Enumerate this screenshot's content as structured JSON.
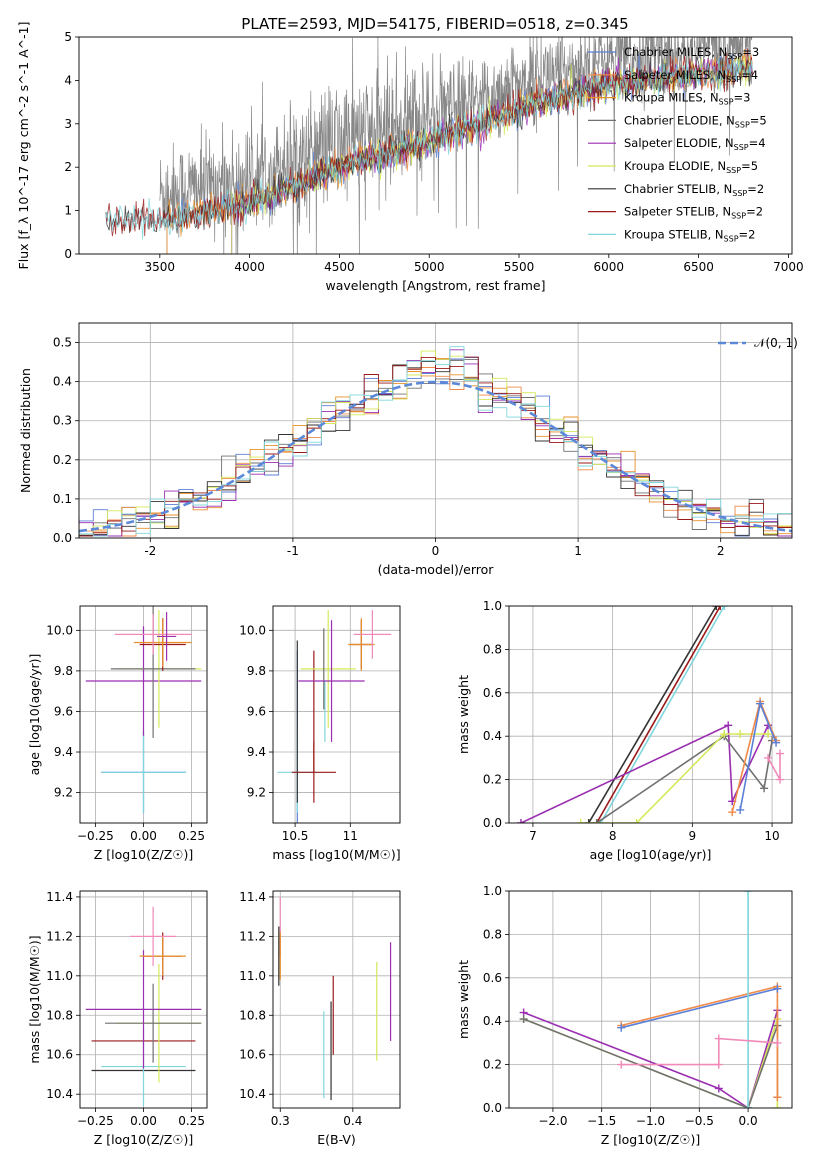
{
  "figure": {
    "title": "PLATE=2593, MJD=54175, FIBERID=0518, z=0.345"
  },
  "colors": {
    "Chabrier MILES": "#5b7fd6",
    "Salpeter MILES": "#f08a48",
    "Kroupa MILES": "#e8902a",
    "Chabrier ELODIE": "#707070",
    "Salpeter ELODIE": "#9a2fb0",
    "Kroupa ELODIE": "#d6e85a",
    "Chabrier STELIB": "#333333",
    "Salpeter STELIB": "#9a1a1a",
    "Kroupa STELIB": "#7fd6dc",
    "extra_pink": "#f08ab8",
    "normal": "#5b88d8",
    "grid": "#b0b0b0"
  },
  "chart_data": [
    {
      "id": "spectrum",
      "type": "line",
      "xlabel": "wavelength [Angstrom, rest frame]",
      "ylabel": "Flux [f_λ 10^-17 erg cm^-2 s^-1 A^-1]",
      "xlim": [
        3050,
        7020
      ],
      "ylim": [
        0,
        5
      ],
      "xticks": [
        3500,
        4000,
        4500,
        5000,
        5500,
        6000,
        6500,
        7000
      ],
      "yticks": [
        0,
        1,
        2,
        3,
        4,
        5
      ],
      "grid": false,
      "legend_position": "top-right",
      "legend": [
        {
          "name": "Chabrier MILES",
          "base": "Chabrier MILES, N",
          "sub": "SSP",
          "tail": "=3"
        },
        {
          "name": "Salpeter MILES",
          "base": "Salpeter MILES, N",
          "sub": "SSP",
          "tail": "=4"
        },
        {
          "name": "Kroupa MILES",
          "base": "Kroupa MILES, N",
          "sub": "SSP",
          "tail": "=3"
        },
        {
          "name": "Chabrier ELODIE",
          "base": "Chabrier ELODIE, N",
          "sub": "SSP",
          "tail": "=5"
        },
        {
          "name": "Salpeter ELODIE",
          "base": "Salpeter ELODIE, N",
          "sub": "SSP",
          "tail": "=4"
        },
        {
          "name": "Kroupa ELODIE",
          "base": "Kroupa ELODIE, N",
          "sub": "SSP",
          "tail": "=5"
        },
        {
          "name": "Chabrier STELIB",
          "base": "Chabrier STELIB, N",
          "sub": "SSP",
          "tail": "=2"
        },
        {
          "name": "Salpeter STELIB",
          "base": "Salpeter STELIB, N",
          "sub": "SSP",
          "tail": "=2"
        },
        {
          "name": "Kroupa STELIB",
          "base": "Kroupa STELIB, N",
          "sub": "SSP",
          "tail": "=2"
        }
      ],
      "data": {
        "wavelength_range": [
          3200,
          6800
        ],
        "continuum_knots": [
          [
            3200,
            0.75
          ],
          [
            3500,
            0.8
          ],
          [
            3800,
            1.0
          ],
          [
            4000,
            1.15
          ],
          [
            4200,
            1.5
          ],
          [
            4500,
            2.0
          ],
          [
            4800,
            2.35
          ],
          [
            5000,
            2.6
          ],
          [
            5300,
            3.0
          ],
          [
            5600,
            3.5
          ],
          [
            6000,
            3.9
          ],
          [
            6400,
            4.1
          ],
          [
            6800,
            4.3
          ]
        ],
        "noisy_data_start": 3500,
        "model_starts": {
          "MILES": 3540,
          "ELODIE": 3900,
          "STELIB": 3200
        }
      }
    },
    {
      "id": "residuals",
      "type": "histogram",
      "xlabel": "(data-model)/error",
      "ylabel": "Normed distribution",
      "xlim": [
        -2.5,
        2.5
      ],
      "ylim": [
        0,
        0.55
      ],
      "xticks": [
        -2,
        -1,
        0,
        1,
        2
      ],
      "yticks": [
        0.0,
        0.1,
        0.2,
        0.3,
        0.4,
        0.5
      ],
      "grid": true,
      "legend_position": "top-right",
      "legend": [
        {
          "name": "N(0,1)",
          "label": "𝒩(0, 1)"
        }
      ],
      "data": {
        "bin_width": 0.1,
        "normal": {
          "mean": 0,
          "sigma": 1
        }
      }
    },
    {
      "id": "age_vs_Z",
      "type": "scatter",
      "xlabel": "Z [log10(Z/Z☉)]",
      "ylabel": "age [log10(age/yr)]",
      "xlim": [
        -0.33,
        0.33
      ],
      "ylim": [
        9.05,
        10.12
      ],
      "xticks": [
        -0.25,
        0.0,
        0.25
      ],
      "xticklabels": [
        "−0.25",
        "0.00",
        "0.25"
      ],
      "yticks": [
        9.2,
        9.4,
        9.6,
        9.8,
        10.0
      ],
      "grid": true,
      "points": [
        {
          "model": "Chabrier MILES",
          "x": 0.0,
          "xerr": 0.22,
          "y": 9.3,
          "yerr": 0.2
        },
        {
          "model": "Kroupa STELIB",
          "x": 0.0,
          "xerr": 0.22,
          "y": 9.3,
          "yerr": 0.2
        },
        {
          "model": "Salpeter ELODIE",
          "x": 0.0,
          "xerr": 0.3,
          "y": 9.75,
          "yerr": 0.27
        },
        {
          "model": "Kroupa ELODIE",
          "x": 0.08,
          "xerr": 0.22,
          "y": 9.81,
          "yerr": 0.29
        },
        {
          "model": "Chabrier ELODIE",
          "x": 0.05,
          "xerr": 0.22,
          "y": 9.81,
          "yerr": 0.34
        },
        {
          "model": "Salpeter STELIB",
          "x": 0.1,
          "xerr": 0.12,
          "y": 9.93,
          "yerr": 0.13
        },
        {
          "model": "Kroupa MILES",
          "x": 0.1,
          "xerr": 0.15,
          "y": 9.94,
          "yerr": 0.12
        },
        {
          "model": "extra_pink",
          "x": 0.05,
          "xerr": 0.2,
          "y": 9.98,
          "yerr": 0.1
        },
        {
          "model": "Salpeter ELODIE",
          "x": 0.12,
          "xerr": 0.05,
          "y": 9.97,
          "yerr": 0.12
        }
      ]
    },
    {
      "id": "age_vs_mass",
      "type": "scatter",
      "xlabel": "mass [log10(M/M☉)]",
      "ylabel": "",
      "xlim": [
        10.3,
        11.45
      ],
      "ylim": [
        9.05,
        10.12
      ],
      "xticks": [
        10.5,
        11.0
      ],
      "yticks": [
        9.2,
        9.4,
        9.6,
        9.8,
        10.0
      ],
      "grid": true,
      "points": [
        {
          "model": "Chabrier MILES",
          "x": 10.52,
          "xerr": 0.0,
          "y": 9.4,
          "yerr": 0.5
        },
        {
          "model": "Kroupa STELIB",
          "x": 10.52,
          "xerr": 0.18,
          "y": 9.3,
          "yerr": 0.2
        },
        {
          "model": "Chabrier STELIB",
          "x": 10.52,
          "xerr": 0.0,
          "y": 9.55,
          "yerr": 0.4
        },
        {
          "model": "Salpeter STELIB",
          "x": 10.67,
          "xerr": 0.2,
          "y": 9.3,
          "yerr": 0.15
        },
        {
          "model": "Salpeter STELIB",
          "x": 10.67,
          "xerr": 0.0,
          "y": 9.6,
          "yerr": 0.3
        },
        {
          "model": "Kroupa STELIB",
          "x": 10.77,
          "xerr": 0.0,
          "y": 9.6,
          "yerr": 0.15
        },
        {
          "model": "Kroupa ELODIE",
          "x": 10.8,
          "xerr": 0.25,
          "y": 9.81,
          "yerr": 0.29
        },
        {
          "model": "Chabrier ELODIE",
          "x": 10.76,
          "xerr": 0.0,
          "y": 9.81,
          "yerr": 0.2
        },
        {
          "model": "Salpeter ELODIE",
          "x": 10.83,
          "xerr": 0.3,
          "y": 9.75,
          "yerr": 0.3
        },
        {
          "model": "Salpeter STELIB",
          "x": 11.1,
          "xerr": 0.1,
          "y": 9.93,
          "yerr": 0.12
        },
        {
          "model": "Kroupa MILES",
          "x": 11.1,
          "xerr": 0.12,
          "y": 9.93,
          "yerr": 0.13
        },
        {
          "model": "extra_pink",
          "x": 11.2,
          "xerr": 0.17,
          "y": 9.98,
          "yerr": 0.12
        }
      ]
    },
    {
      "id": "weight_vs_age",
      "type": "line",
      "xlabel": "age [log10(age/yr)]",
      "ylabel": "mass weight",
      "xlim": [
        6.7,
        10.25
      ],
      "ylim": [
        0,
        1
      ],
      "xticks": [
        7,
        8,
        9,
        10
      ],
      "yticks": [
        0.0,
        0.2,
        0.4,
        0.6,
        0.8,
        1.0
      ],
      "grid": true,
      "series": [
        {
          "model": "Chabrier STELIB",
          "x": [
            7.7,
            9.3
          ],
          "y": [
            0.0,
            1.0
          ]
        },
        {
          "model": "Salpeter STELIB",
          "x": [
            7.8,
            9.35
          ],
          "y": [
            0.0,
            1.0
          ]
        },
        {
          "model": "Kroupa STELIB",
          "x": [
            7.85,
            9.4
          ],
          "y": [
            0.0,
            1.0
          ]
        },
        {
          "model": "Salpeter ELODIE",
          "x": [
            6.85,
            9.45,
            9.5,
            9.95
          ],
          "y": [
            0.0,
            0.45,
            0.1,
            0.45
          ]
        },
        {
          "model": "Chabrier ELODIE",
          "x": [
            7.8,
            9.4,
            9.9,
            10.0
          ],
          "y": [
            0.0,
            0.4,
            0.16,
            0.38
          ]
        },
        {
          "model": "Kroupa ELODIE",
          "x": [
            7.6,
            8.3,
            9.4,
            9.6,
            9.95
          ],
          "y": [
            0.0,
            0.0,
            0.41,
            0.41,
            0.41
          ]
        },
        {
          "model": "Salpeter MILES",
          "x": [
            9.5,
            9.85,
            10.05
          ],
          "y": [
            0.05,
            0.56,
            0.38
          ]
        },
        {
          "model": "Chabrier MILES",
          "x": [
            9.6,
            9.85,
            10.05
          ],
          "y": [
            0.06,
            0.55,
            0.37
          ]
        },
        {
          "model": "extra_pink",
          "x": [
            9.95,
            10.1,
            10.1
          ],
          "y": [
            0.3,
            0.2,
            0.32
          ]
        }
      ]
    },
    {
      "id": "mass_vs_Z",
      "type": "scatter",
      "xlabel": "Z [log10(Z/Z☉)]",
      "ylabel": "mass [log10(M/M☉)]",
      "xlim": [
        -0.33,
        0.33
      ],
      "ylim": [
        10.33,
        11.43
      ],
      "xticks": [
        -0.25,
        0.0,
        0.25
      ],
      "xticklabels": [
        "−0.25",
        "0.00",
        "0.25"
      ],
      "yticks": [
        10.4,
        10.6,
        10.8,
        11.0,
        11.2,
        11.4
      ],
      "grid": true,
      "points": [
        {
          "model": "Chabrier STELIB",
          "x": 0.0,
          "xerr": 0.27,
          "y": 10.52,
          "yerr": 0.0
        },
        {
          "model": "Kroupa STELIB",
          "x": 0.0,
          "xerr": 0.22,
          "y": 10.54,
          "yerr": 0.2
        },
        {
          "model": "Salpeter STELIB",
          "x": 0.0,
          "xerr": 0.27,
          "y": 10.67,
          "yerr": 0.0
        },
        {
          "model": "Kroupa ELODIE",
          "x": 0.08,
          "xerr": 0.22,
          "y": 10.76,
          "yerr": 0.3
        },
        {
          "model": "Chabrier ELODIE",
          "x": 0.05,
          "xerr": 0.25,
          "y": 10.76,
          "yerr": 0.2
        },
        {
          "model": "Salpeter ELODIE",
          "x": 0.0,
          "xerr": 0.3,
          "y": 10.83,
          "yerr": 0.3
        },
        {
          "model": "Salpeter STELIB",
          "x": 0.1,
          "xerr": 0.1,
          "y": 11.1,
          "yerr": 0.12
        },
        {
          "model": "Kroupa MILES",
          "x": 0.1,
          "xerr": 0.12,
          "y": 11.1,
          "yerr": 0.1
        },
        {
          "model": "extra_pink",
          "x": 0.05,
          "xerr": 0.12,
          "y": 11.2,
          "yerr": 0.15
        }
      ]
    },
    {
      "id": "mass_vs_EBV",
      "type": "scatter",
      "xlabel": "E(B-V)",
      "ylabel": "",
      "xlim": [
        0.29,
        0.465
      ],
      "ylim": [
        10.33,
        11.43
      ],
      "xticks": [
        0.3,
        0.4
      ],
      "yticks": [
        10.4,
        10.6,
        10.8,
        11.0,
        11.2,
        11.4
      ],
      "grid": true,
      "points": [
        {
          "model": "extra_pink",
          "x": 0.3,
          "y": 11.25,
          "yerr": 0.15
        },
        {
          "model": "Kroupa MILES",
          "x": 0.3,
          "y": 11.1,
          "yerr": 0.12
        },
        {
          "model": "Chabrier STELIB",
          "x": 0.298,
          "y": 11.1,
          "yerr": 0.15
        },
        {
          "model": "Kroupa STELIB",
          "x": 0.36,
          "y": 10.6,
          "yerr": 0.22
        },
        {
          "model": "Chabrier STELIB",
          "x": 0.37,
          "y": 10.62,
          "yerr": 0.25
        },
        {
          "model": "Salpeter STELIB",
          "x": 0.373,
          "y": 10.8,
          "yerr": 0.2
        },
        {
          "model": "Kroupa ELODIE",
          "x": 0.433,
          "y": 10.82,
          "yerr": 0.25
        },
        {
          "model": "Salpeter ELODIE",
          "x": 0.452,
          "y": 10.92,
          "yerr": 0.25
        }
      ]
    },
    {
      "id": "weight_vs_Z",
      "type": "line",
      "xlabel": "Z [log10(Z/Z☉)]",
      "ylabel": "mass weight",
      "xlim": [
        -2.45,
        0.45
      ],
      "ylim": [
        0,
        1
      ],
      "xticks": [
        -2.0,
        -1.5,
        -1.0,
        -0.5,
        0.0
      ],
      "xticklabels": [
        "−2.0",
        "−1.5",
        "−1.0",
        "−0.5",
        "0.0"
      ],
      "yticks": [
        0.0,
        0.2,
        0.4,
        0.6,
        0.8,
        1.0
      ],
      "grid": true,
      "series": [
        {
          "model": "Salpeter ELODIE",
          "x": [
            -2.3,
            -0.3,
            0.0,
            0.3,
            0.3
          ],
          "y": [
            0.44,
            0.09,
            0.0,
            0.45,
            0.05
          ]
        },
        {
          "model": "Kroupa ELODIE",
          "x": [
            -2.3,
            0.0,
            0.3,
            0.3
          ],
          "y": [
            0.41,
            0.0,
            0.41,
            0.0
          ]
        },
        {
          "model": "Chabrier ELODIE",
          "x": [
            -2.3,
            0.0,
            0.3
          ],
          "y": [
            0.41,
            0.0,
            0.38
          ]
        },
        {
          "model": "Salpeter MILES",
          "x": [
            -1.3,
            0.3,
            0.3
          ],
          "y": [
            0.38,
            0.56,
            0.05
          ]
        },
        {
          "model": "Chabrier MILES",
          "x": [
            -1.3,
            0.3
          ],
          "y": [
            0.37,
            0.55
          ]
        },
        {
          "model": "Kroupa STELIB",
          "x": [
            0.0,
            0.0
          ],
          "y": [
            0.0,
            1.0
          ]
        },
        {
          "model": "extra_pink",
          "x": [
            -1.3,
            -0.3,
            -0.3,
            0.3
          ],
          "y": [
            0.2,
            0.2,
            0.32,
            0.3
          ]
        }
      ]
    }
  ]
}
